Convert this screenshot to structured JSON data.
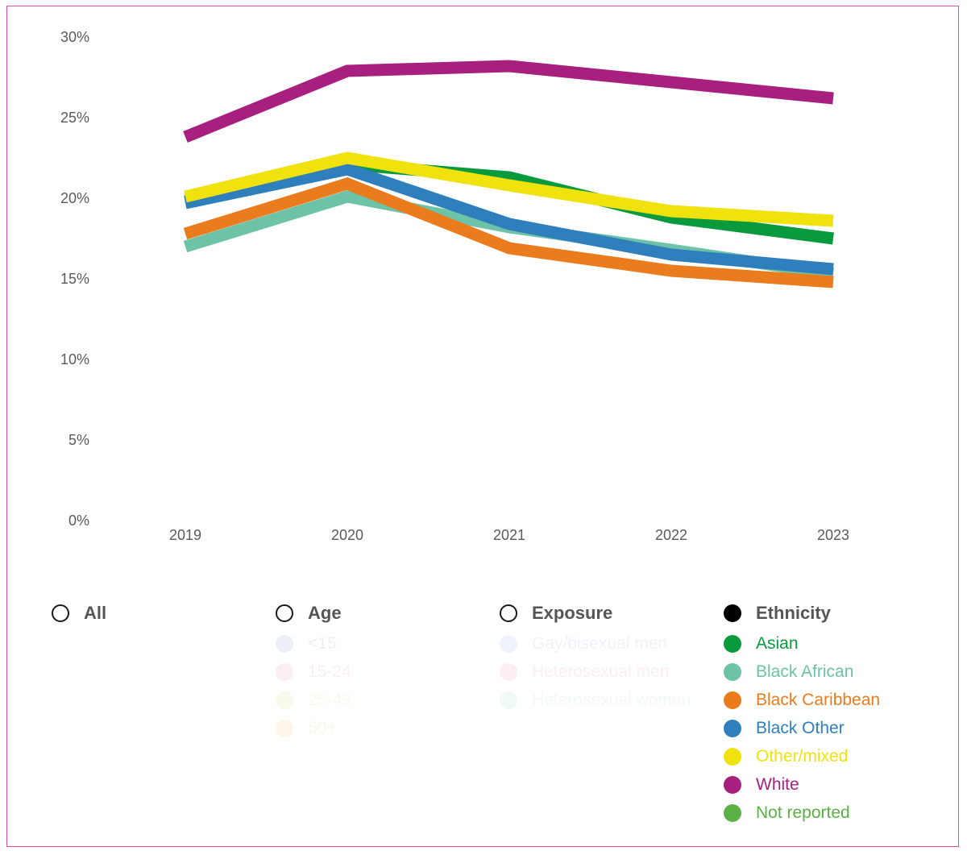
{
  "chart_data": {
    "type": "line",
    "x": [
      "2019",
      "2020",
      "2021",
      "2022",
      "2023"
    ],
    "ylim": [
      0,
      30
    ],
    "y_ticks": [
      "0%",
      "5%",
      "10%",
      "15%",
      "20%",
      "25%",
      "30%"
    ],
    "grid": false,
    "series": [
      {
        "name": "Asian",
        "color": "#0a9a3e",
        "values": [
          19.8,
          22.1,
          21.3,
          18.8,
          17.5
        ]
      },
      {
        "name": "Black African",
        "color": "#6cc3a7",
        "values": [
          17.0,
          20.1,
          18.2,
          16.8,
          15.3
        ]
      },
      {
        "name": "Black Caribbean",
        "color": "#eb7c1e",
        "values": [
          17.8,
          20.9,
          16.9,
          15.5,
          14.8
        ]
      },
      {
        "name": "Black Other",
        "color": "#2f7fbd",
        "values": [
          19.7,
          21.8,
          18.4,
          16.5,
          15.6
        ]
      },
      {
        "name": "Other/mixed",
        "color": "#f0e20d",
        "values": [
          20.1,
          22.5,
          20.8,
          19.2,
          18.6
        ]
      },
      {
        "name": "White",
        "color": "#a8207f",
        "values": [
          23.8,
          27.9,
          28.2,
          27.2,
          26.2
        ]
      }
    ]
  },
  "legend": {
    "all": {
      "label": "All"
    },
    "age": {
      "heading": "Age",
      "items": [
        {
          "label": "<15",
          "color": "#5a68b8"
        },
        {
          "label": "15-24",
          "color": "#e8557f"
        },
        {
          "label": "25-49",
          "color": "#b7d65a"
        },
        {
          "label": "50+",
          "color": "#f6b23c"
        }
      ]
    },
    "exposure": {
      "heading": "Exposure",
      "items": [
        {
          "label": "Gay/bisexual men",
          "color": "#6a86c4"
        },
        {
          "label": "Heterosexual men",
          "color": "#e45a7c"
        },
        {
          "label": "Heterosexual women",
          "color": "#76c9bf"
        }
      ]
    },
    "ethnicity": {
      "heading": "Ethnicity",
      "items": [
        {
          "label": "Asian",
          "color": "#0a9a3e"
        },
        {
          "label": "Black African",
          "color": "#6cc3a7"
        },
        {
          "label": "Black Caribbean",
          "color": "#eb7c1e"
        },
        {
          "label": "Black Other",
          "color": "#2f7fbd"
        },
        {
          "label": "Other/mixed",
          "color": "#f0e20d"
        },
        {
          "label": "White",
          "color": "#a8207f"
        },
        {
          "label": "Not reported",
          "color": "#5bb046"
        }
      ]
    }
  }
}
